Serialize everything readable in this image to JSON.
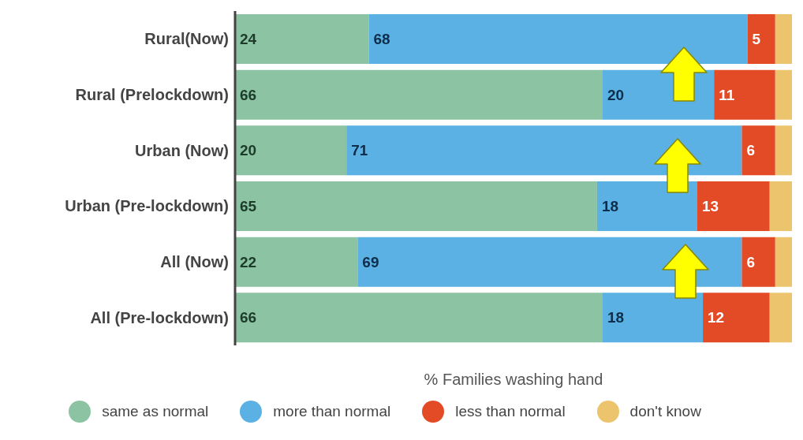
{
  "chart_data": {
    "type": "bar",
    "orientation": "horizontal",
    "stacked": true,
    "xlabel": "% Families washing hand",
    "categories": [
      "Rural(Now)",
      "Rural (Prelockdown)",
      "Urban (Now)",
      "Urban (Pre-lockdown)",
      "All (Now)",
      "All (Pre-lockdown)"
    ],
    "xlim": [
      0,
      100
    ],
    "tick_labels": "y",
    "legend": "bottom",
    "series": [
      {
        "name": "same as normal",
        "color": "#8cc3a2",
        "values": [
          24,
          66,
          20,
          65,
          22,
          66
        ],
        "value_labels": [
          "24",
          "66",
          "20",
          "65",
          "22",
          "66"
        ]
      },
      {
        "name": "more than normal",
        "color": "#5bb1e3",
        "values": [
          68,
          20,
          71,
          18,
          69,
          18
        ],
        "value_labels": [
          "68",
          "20",
          "71",
          "18",
          "69",
          "18"
        ]
      },
      {
        "name": "less than normal",
        "color": "#e34a26",
        "values": [
          5,
          11,
          6,
          13,
          6,
          12
        ],
        "value_labels": [
          "5",
          "11",
          "6",
          "13",
          "6",
          "12"
        ]
      },
      {
        "name": "don't know",
        "color": "#ecc46e",
        "values": [
          3,
          3,
          3,
          4,
          3,
          4
        ],
        "value_labels": [
          null,
          null,
          null,
          null,
          null,
          null
        ]
      }
    ]
  }
}
